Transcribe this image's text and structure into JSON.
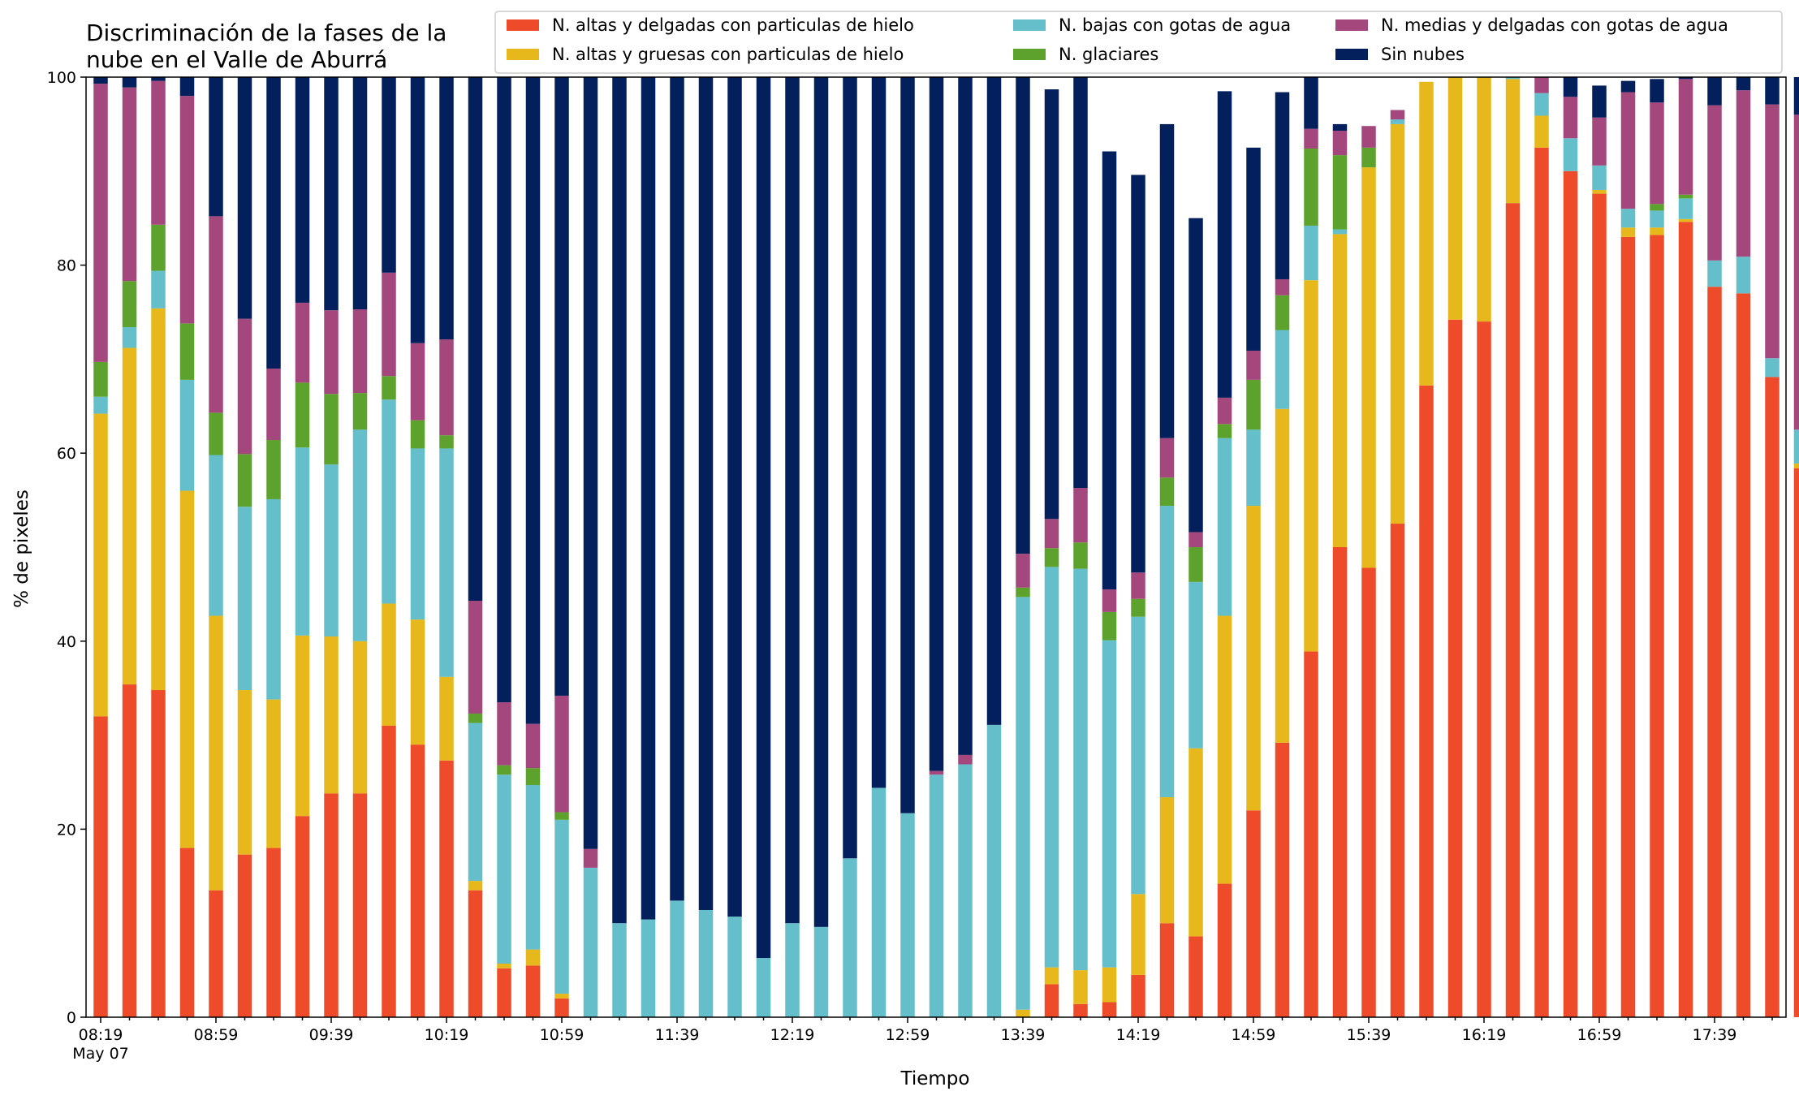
{
  "chart_data": {
    "type": "bar",
    "stacked": true,
    "title_lines": [
      "Discriminación de la fases de la",
      "nube en el Valle de Aburrá"
    ],
    "xlabel": "Tiempo",
    "ylabel": "% de pixeles",
    "ylim": [
      0,
      100
    ],
    "yticks": [
      0,
      20,
      40,
      60,
      80,
      100
    ],
    "legend_position": "top-right",
    "x_start": "08:19",
    "x_step_minutes": 10,
    "xtick_labels": [
      {
        "index": 0,
        "label": "08:19",
        "sublabel": "May 07"
      },
      {
        "index": 4,
        "label": "08:59"
      },
      {
        "index": 8,
        "label": "09:39"
      },
      {
        "index": 12,
        "label": "10:19"
      },
      {
        "index": 16,
        "label": "10:59"
      },
      {
        "index": 20,
        "label": "11:39"
      },
      {
        "index": 24,
        "label": "12:19"
      },
      {
        "index": 28,
        "label": "12:59"
      },
      {
        "index": 32,
        "label": "13:39"
      },
      {
        "index": 36,
        "label": "14:19"
      },
      {
        "index": 40,
        "label": "14:59"
      },
      {
        "index": 44,
        "label": "15:39"
      },
      {
        "index": 48,
        "label": "16:19"
      },
      {
        "index": 52,
        "label": "16:59"
      },
      {
        "index": 56,
        "label": "17:39"
      }
    ],
    "series": [
      {
        "name": "N. altas y delgadas con particulas de hielo",
        "color": "#ed4b2a",
        "values": [
          32,
          35.4,
          34.8,
          18,
          13.5,
          17.3,
          18,
          21.4,
          23.8,
          23.8,
          31,
          29,
          27.3,
          13.5,
          5.2,
          5.5,
          2,
          0,
          0,
          0,
          0,
          0,
          0,
          0,
          0,
          0,
          0,
          0,
          0,
          0,
          0,
          0,
          0,
          3.5,
          1.4,
          1.6,
          4.5,
          10,
          8.6,
          14.2,
          22,
          29.2,
          38.9,
          50,
          47.8,
          52.5,
          67.2,
          74.2,
          74,
          86.6,
          92.5,
          90,
          87.6,
          83,
          83.2,
          84.6,
          77.7,
          77,
          68.1,
          58.4
        ]
      },
      {
        "name": "N. altas y gruesas con particulas de hielo",
        "color": "#e6b81b",
        "values": [
          32.2,
          35.8,
          40.6,
          38,
          29.2,
          17.5,
          15.8,
          19.2,
          16.7,
          16.2,
          13,
          13.3,
          8.9,
          1,
          0.5,
          1.7,
          0.5,
          0,
          0,
          0,
          0,
          0,
          0,
          0,
          0,
          0,
          0,
          0,
          0,
          0,
          0,
          0,
          0.8,
          1.8,
          3.6,
          3.7,
          8.6,
          13.4,
          20,
          28.5,
          32.4,
          35.5,
          39.5,
          33.3,
          42.6,
          42.5,
          32.3,
          25.8,
          26,
          13.2,
          3.4,
          0,
          0.4,
          1,
          0.8,
          0.3,
          0,
          0,
          0,
          0.5
        ]
      },
      {
        "name": "N. bajas con gotas de agua",
        "color": "#65bfcb",
        "values": [
          1.8,
          2.2,
          4,
          11.8,
          17.1,
          19.5,
          21.3,
          20,
          18.3,
          22.5,
          21.7,
          18.2,
          24.3,
          16.8,
          20.1,
          17.5,
          18.5,
          15.9,
          10,
          10.4,
          12.4,
          11.4,
          10.7,
          6.3,
          10,
          9.6,
          16.9,
          24.4,
          21.7,
          25.8,
          26.9,
          31.1,
          43.9,
          42.6,
          42.7,
          34.8,
          29.5,
          31,
          17.7,
          18.9,
          8.1,
          8.4,
          5.8,
          0.5,
          0,
          0.5,
          0,
          0,
          0,
          1.2,
          2.4,
          3.5,
          2.6,
          2,
          1.8,
          2.2,
          2.8,
          3.9,
          2,
          3.6
        ]
      },
      {
        "name": "N. glaciares",
        "color": "#5da22d",
        "values": [
          3.7,
          4.9,
          4.9,
          6,
          4.5,
          5.6,
          6.3,
          6.9,
          7.5,
          3.9,
          2.5,
          3,
          1.4,
          1,
          1,
          1.8,
          0.8,
          0,
          0,
          0,
          0,
          0,
          0,
          0,
          0,
          0,
          0,
          0,
          0,
          0,
          0,
          0,
          1,
          2,
          2.8,
          3,
          1.9,
          3,
          3.7,
          1.5,
          5.3,
          3.7,
          8.2,
          7.9,
          2.1,
          0,
          0,
          0,
          0,
          0,
          0,
          0,
          0,
          0,
          0.7,
          0.4,
          0,
          0,
          0,
          0
        ]
      },
      {
        "name": "N. medias y delgadas con gotas de agua",
        "color": "#a4477d",
        "values": [
          29.6,
          20.6,
          15.3,
          24.2,
          20.9,
          14.4,
          7.6,
          8.5,
          8.9,
          8.9,
          11,
          8.2,
          10.2,
          12,
          6.7,
          4.7,
          12.4,
          2,
          0,
          0,
          0,
          0,
          0,
          0,
          0,
          0,
          0,
          0,
          0,
          0.4,
          1,
          0,
          3.6,
          3.1,
          5.8,
          2.4,
          2.8,
          4.2,
          1.6,
          2.8,
          3.1,
          1.7,
          2.1,
          2.6,
          2.3,
          1,
          0,
          0,
          0,
          0.2,
          4.1,
          4.4,
          5.1,
          12.4,
          10.8,
          12.3,
          16.5,
          17.7,
          27,
          33.5
        ]
      },
      {
        "name": "Sin nubes",
        "color": "#03205c",
        "values": [
          0.7,
          1.1,
          0.4,
          2,
          14.8,
          25.7,
          31,
          24,
          24.8,
          24.7,
          20.8,
          28.3,
          27.9,
          55.7,
          66.5,
          68.8,
          65.8,
          82.1,
          90,
          89.6,
          87.6,
          88.6,
          89.3,
          93.7,
          90,
          90.4,
          83.1,
          75.6,
          78.3,
          73.8,
          72.1,
          68.9,
          50.7,
          45.7,
          44.1,
          46.6,
          42.3,
          33.4,
          33.4,
          32.6,
          21.6,
          19.9,
          6.8,
          0.7,
          0,
          0,
          0,
          0,
          0,
          0,
          0,
          2.1,
          3.4,
          1.2,
          2.5,
          0.2,
          3,
          1.4,
          2.9,
          4
        ]
      }
    ]
  }
}
